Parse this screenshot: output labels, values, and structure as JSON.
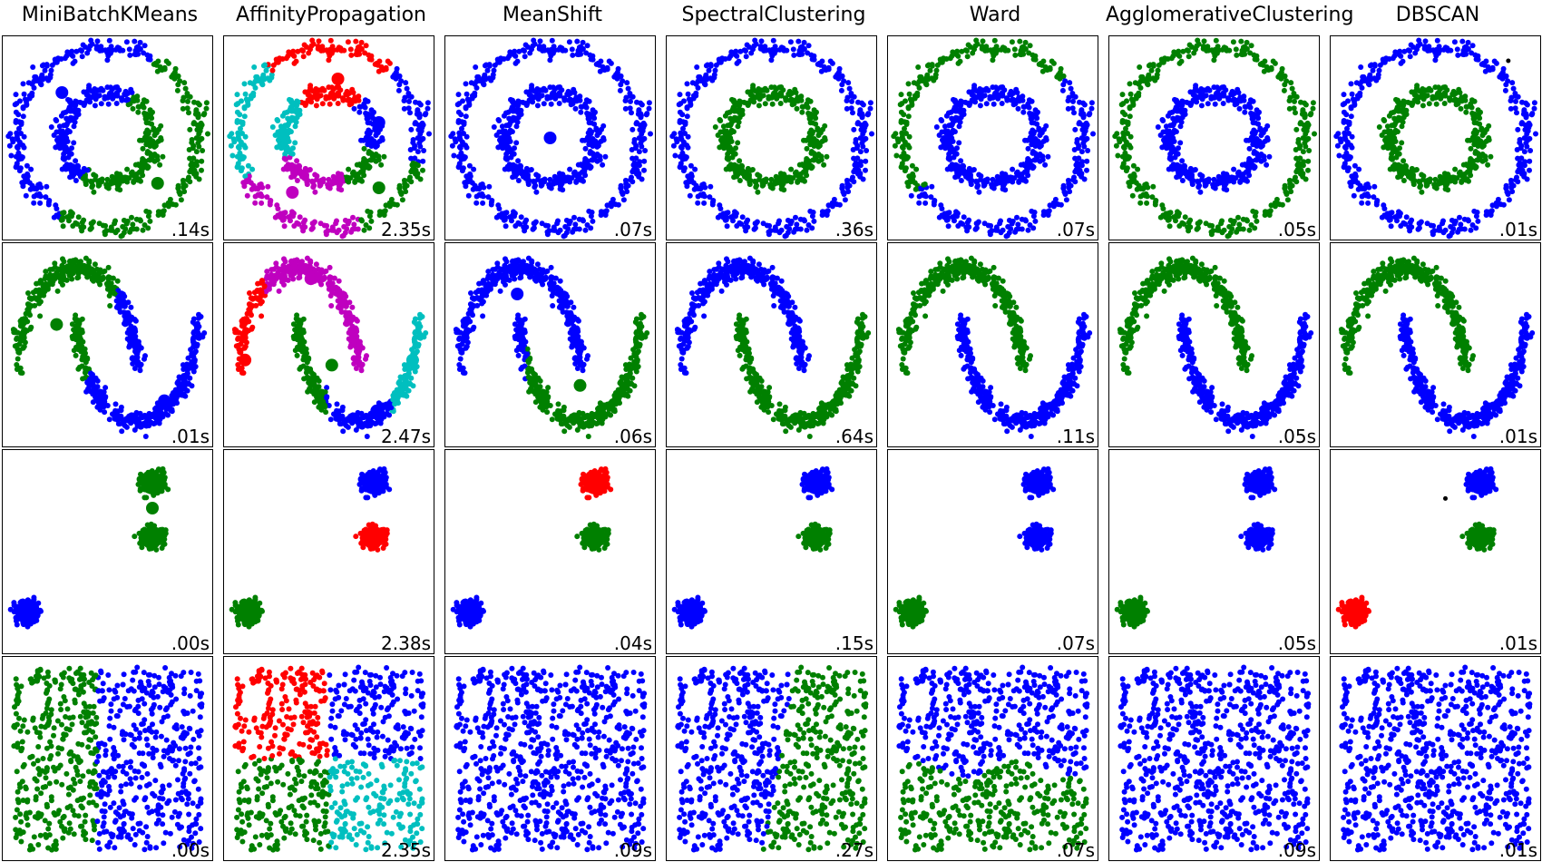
{
  "chart_data": {
    "type": "scatter",
    "grid": false,
    "axis_ticks": false,
    "columns": [
      "MiniBatchKMeans",
      "AffinityPropagation",
      "MeanShift",
      "SpectralClustering",
      "Ward",
      "AgglomerativeClustering",
      "DBSCAN"
    ],
    "rows": [
      {
        "times": [
          ".14s",
          "2.35s",
          ".07s",
          ".36s",
          ".07s",
          ".05s",
          ".01s"
        ]
      },
      {
        "times": [
          ".01s",
          "2.47s",
          ".06s",
          ".64s",
          ".11s",
          ".05s",
          ".01s"
        ]
      },
      {
        "times": [
          ".00s",
          "2.38s",
          ".04s",
          ".15s",
          ".07s",
          ".05s",
          ".01s"
        ]
      },
      {
        "times": [
          ".00s",
          "2.35s",
          ".09s",
          ".27s",
          ".07s",
          ".09s",
          ".01s"
        ]
      }
    ],
    "colors": {
      "blue": "#0000ff",
      "green": "#008000",
      "red": "#ff0000",
      "cyan": "#00bfbf",
      "magenta": "#bf00bf",
      "noise": "#000000"
    }
  }
}
